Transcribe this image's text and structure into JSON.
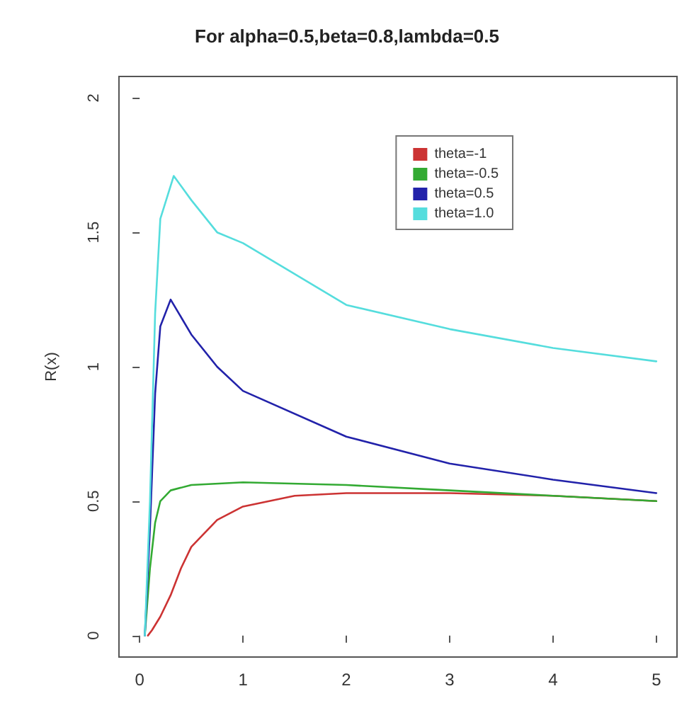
{
  "chart_data": {
    "type": "line",
    "title": "For alpha=0.5,beta=0.8,lambda=0.5",
    "ylabel": "R(x)",
    "xlim": [
      -0.2,
      5.2
    ],
    "xticks": [
      0,
      1,
      2,
      3,
      4,
      5
    ],
    "ylim": [
      -0.08,
      2.08
    ],
    "yticks": [
      0,
      0.5,
      1,
      1.5,
      2
    ],
    "grid": false,
    "legend": "top right",
    "marker": "none",
    "line_style": "solid",
    "series": [
      {
        "name": "theta=-1",
        "color": "#cc3333",
        "x": [
          0.08,
          0.12,
          0.2,
          0.3,
          0.4,
          0.5,
          0.75,
          1,
          1.5,
          2,
          3,
          4,
          5
        ],
        "values": [
          0,
          0.02,
          0.07,
          0.15,
          0.25,
          0.33,
          0.43,
          0.48,
          0.52,
          0.53,
          0.53,
          0.52,
          0.5
        ]
      },
      {
        "name": "theta=-0.5",
        "color": "#33aa33",
        "x": [
          0.05,
          0.1,
          0.15,
          0.2,
          0.3,
          0.5,
          1,
          2,
          3,
          4,
          5
        ],
        "values": [
          0,
          0.25,
          0.42,
          0.5,
          0.54,
          0.56,
          0.57,
          0.56,
          0.54,
          0.52,
          0.5
        ]
      },
      {
        "name": "theta=0.5",
        "color": "#2222aa",
        "x": [
          0.05,
          0.1,
          0.15,
          0.2,
          0.3,
          0.5,
          0.75,
          1,
          2,
          3,
          4,
          5
        ],
        "values": [
          0,
          0.4,
          0.9,
          1.15,
          1.25,
          1.12,
          1,
          0.91,
          0.74,
          0.64,
          0.58,
          0.53
        ]
      },
      {
        "name": "theta=1.0",
        "color": "#55dddd",
        "x": [
          0.05,
          0.1,
          0.15,
          0.2,
          0.33,
          0.5,
          0.75,
          1,
          2,
          3,
          4,
          5
        ],
        "values": [
          0,
          0.5,
          1.2,
          1.55,
          1.71,
          1.62,
          1.5,
          1.46,
          1.23,
          1.14,
          1.07,
          1.02
        ]
      }
    ]
  }
}
